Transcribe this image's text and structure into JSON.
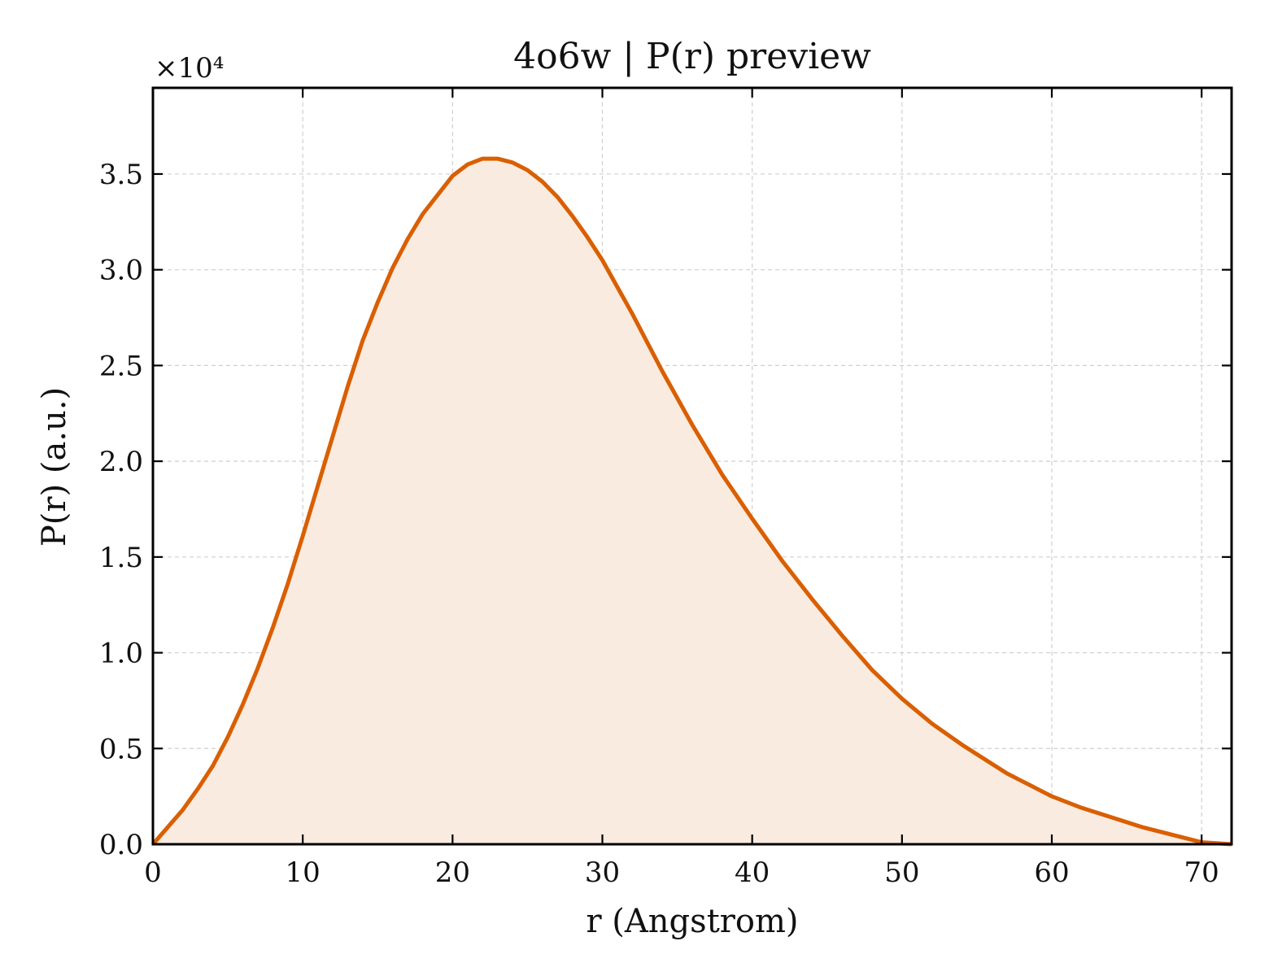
{
  "chart_data": {
    "type": "area",
    "title": "4o6w | P(r) preview",
    "xlabel": "r (Angstrom)",
    "ylabel": "P(r) (a.u.)",
    "y_offset_label": "×10⁴",
    "y_scale": 10000,
    "xlim": [
      0,
      72
    ],
    "ylim": [
      0,
      39500
    ],
    "xticks": [
      0,
      10,
      20,
      30,
      40,
      50,
      60,
      70
    ],
    "yticks": [
      0,
      5000,
      10000,
      15000,
      20000,
      25000,
      30000,
      35000
    ],
    "ytick_labels": [
      "0.0",
      "0.5",
      "1.0",
      "1.5",
      "2.0",
      "2.5",
      "3.0",
      "3.5"
    ],
    "grid": true,
    "line_color": "#d95f02",
    "fill_color": "#f9ebe0",
    "series": [
      {
        "x": [
          0,
          1,
          2,
          3,
          4,
          5,
          6,
          7,
          8,
          9,
          10,
          11,
          12,
          13,
          14,
          15,
          16,
          17,
          18,
          19,
          20,
          21,
          22,
          23,
          24,
          25,
          26,
          27,
          28,
          29,
          30,
          32,
          34,
          36,
          38,
          40,
          42,
          44,
          46,
          48,
          50,
          52,
          54,
          56,
          57,
          58,
          59,
          60,
          61,
          62,
          64,
          66,
          68,
          70,
          71,
          72
        ],
        "y": [
          0,
          900,
          1800,
          2900,
          4100,
          5600,
          7300,
          9200,
          11300,
          13600,
          16100,
          18700,
          21300,
          23900,
          26300,
          28300,
          30100,
          31600,
          32900,
          33900,
          34900,
          35500,
          35800,
          35800,
          35600,
          35200,
          34600,
          33800,
          32800,
          31700,
          30500,
          27700,
          24700,
          21900,
          19300,
          17000,
          14800,
          12800,
          10900,
          9100,
          7600,
          6300,
          5200,
          4200,
          3700,
          3300,
          2900,
          2500,
          2200,
          1900,
          1400,
          900,
          500,
          100,
          50,
          0
        ]
      }
    ]
  }
}
